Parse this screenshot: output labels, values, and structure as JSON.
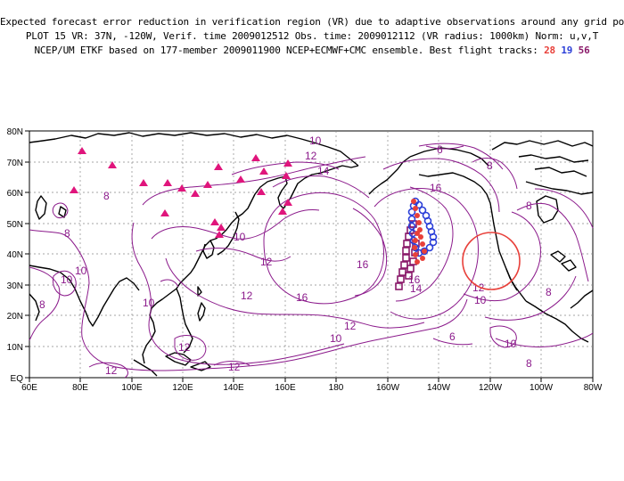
{
  "header": {
    "line1": "Expected forecast error reduction in verification region (VR) due to adaptive observations around any grid point.",
    "line2": "PLOT 15 VR: 37N, -120W, Verif. time 2009012512 Obs. time: 2009012112 (VR radius: 1000km) Norm: u,v,T",
    "line3_prefix": "NCEP/UM ETKF based on 177-member 2009011900 NCEP+ECMWF+CMC ensemble. Best flight tracks:",
    "track_a": "28",
    "track_b": "19",
    "track_c": "56"
  },
  "axes": {
    "lon_ticks": [
      "60E",
      "80E",
      "100E",
      "120E",
      "140E",
      "160E",
      "180",
      "160W",
      "140W",
      "120W",
      "100W",
      "80W"
    ],
    "lat_ticks": [
      "EQ",
      "10N",
      "20N",
      "30N",
      "40N",
      "50N",
      "60N",
      "70N",
      "80N"
    ]
  },
  "contour_labels": [
    "10",
    "12",
    "14",
    "6",
    "8",
    "16",
    "8",
    "8",
    "8",
    "10",
    "10",
    "12",
    "10",
    "16",
    "12",
    "16",
    "12",
    "8",
    "10",
    "10",
    "12",
    "12",
    "8",
    "12",
    "10",
    "6",
    "10",
    "8",
    "12",
    "16",
    "14",
    "14"
  ],
  "colors": {
    "contour": "#8b1a8b",
    "triangles": "#e0157c",
    "track_red": "#e8403a",
    "track_blue": "#2b3fd8",
    "track_purple": "#8a1a6a",
    "vr_circle": "#e8403a"
  },
  "verification_region": {
    "lat": 37,
    "lon": -120,
    "radius_km": 1000
  }
}
